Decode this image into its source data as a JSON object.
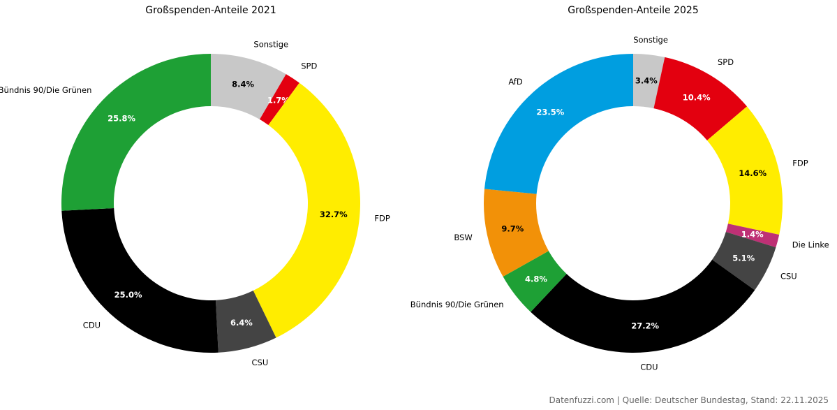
{
  "chart_data": [
    {
      "type": "donut",
      "title": "Großspenden-Anteile 2021",
      "slices": [
        {
          "label": "Sonstige",
          "value": 8.4,
          "pct_label": "8.4%",
          "color": "#c8c8c8",
          "text_color": "#000000"
        },
        {
          "label": "SPD",
          "value": 1.7,
          "pct_label": "1.7%",
          "color": "#e3000f",
          "text_color": "#ffffff"
        },
        {
          "label": "FDP",
          "value": 32.7,
          "pct_label": "32.7%",
          "color": "#ffed00",
          "text_color": "#000000"
        },
        {
          "label": "CSU",
          "value": 6.4,
          "pct_label": "6.4%",
          "color": "#444444",
          "text_color": "#ffffff"
        },
        {
          "label": "CDU",
          "value": 25.0,
          "pct_label": "25.0%",
          "color": "#000000",
          "text_color": "#ffffff"
        },
        {
          "label": "Bündnis 90/Die Grünen",
          "value": 25.8,
          "pct_label": "25.8%",
          "color": "#1ea035",
          "text_color": "#ffffff"
        }
      ]
    },
    {
      "type": "donut",
      "title": "Großspenden-Anteile 2025",
      "slices": [
        {
          "label": "Sonstige",
          "value": 3.4,
          "pct_label": "3.4%",
          "color": "#c8c8c8",
          "text_color": "#000000"
        },
        {
          "label": "SPD",
          "value": 10.4,
          "pct_label": "10.4%",
          "color": "#e3000f",
          "text_color": "#ffffff"
        },
        {
          "label": "FDP",
          "value": 14.6,
          "pct_label": "14.6%",
          "color": "#ffed00",
          "text_color": "#000000"
        },
        {
          "label": "Die Linke",
          "value": 1.4,
          "pct_label": "1.4%",
          "color": "#be3075",
          "text_color": "#ffffff"
        },
        {
          "label": "CSU",
          "value": 5.1,
          "pct_label": "5.1%",
          "color": "#444444",
          "text_color": "#ffffff"
        },
        {
          "label": "CDU",
          "value": 27.2,
          "pct_label": "27.2%",
          "color": "#000000",
          "text_color": "#ffffff"
        },
        {
          "label": "Bündnis 90/Die Grünen",
          "value": 4.8,
          "pct_label": "4.8%",
          "color": "#1ea035",
          "text_color": "#ffffff"
        },
        {
          "label": "BSW",
          "value": 9.7,
          "pct_label": "9.7%",
          "color": "#f29108",
          "text_color": "#000000"
        },
        {
          "label": "AfD",
          "value": 23.5,
          "pct_label": "23.5%",
          "color": "#009ee0",
          "text_color": "#ffffff"
        }
      ]
    }
  ],
  "footer": "Datenfuzzi.com | Quelle: Deutscher Bundestag, Stand: 22.11.2025"
}
